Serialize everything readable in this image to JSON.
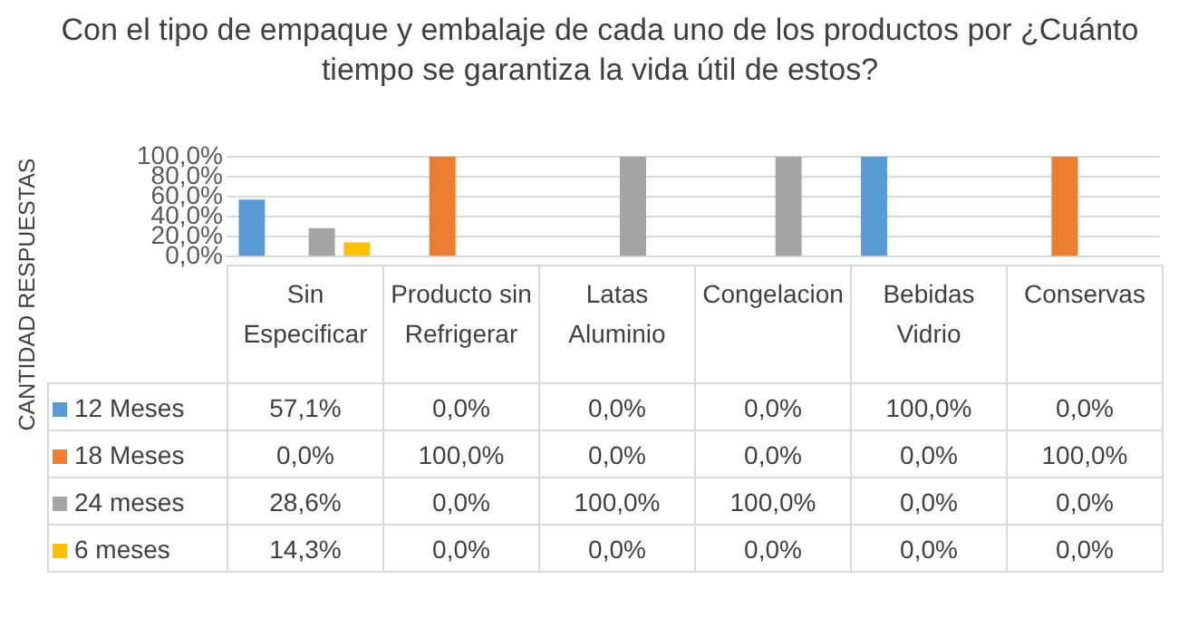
{
  "chart_data": {
    "type": "bar",
    "title": "Con el tipo de empaque y  embalaje de cada uno de los productos por ¿Cuánto tiempo se garantiza la vida útil de estos?",
    "ylabel": "CANTIDAD RESPUESTAS",
    "categories": [
      "Sin Especificar",
      "Producto sin Refrigerar",
      "Latas Aluminio",
      "Congelacion",
      "Bebidas Vidrio",
      "Conservas"
    ],
    "series": [
      {
        "name": "12 Meses",
        "color": "#5b9bd5",
        "values": [
          57.1,
          0,
          0,
          0,
          100,
          0
        ],
        "value_labels": [
          "57,1%",
          "0,0%",
          "0,0%",
          "0,0%",
          "100,0%",
          "0,0%"
        ]
      },
      {
        "name": "18 Meses",
        "color": "#ed7d31",
        "values": [
          0,
          100,
          0,
          0,
          0,
          100
        ],
        "value_labels": [
          "0,0%",
          "100,0%",
          "0,0%",
          "0,0%",
          "0,0%",
          "100,0%"
        ]
      },
      {
        "name": "24 meses",
        "color": "#a5a5a5",
        "values": [
          28.6,
          0,
          100,
          100,
          0,
          0
        ],
        "value_labels": [
          "28,6%",
          "0,0%",
          "100,0%",
          "100,0%",
          "0,0%",
          "0,0%"
        ]
      },
      {
        "name": "6 meses",
        "color": "#ffc000",
        "values": [
          14.3,
          0,
          0,
          0,
          0,
          0
        ],
        "value_labels": [
          "14,3%",
          "0,0%",
          "0,0%",
          "0,0%",
          "0,0%",
          "0,0%"
        ]
      }
    ],
    "ylim": [
      0,
      100
    ],
    "yticks": [
      {
        "value": 0,
        "label": "0,0%"
      },
      {
        "value": 20,
        "label": "20,0%"
      },
      {
        "value": 40,
        "label": "40,0%"
      },
      {
        "value": 60,
        "label": "60,0%"
      },
      {
        "value": 80,
        "label": "80,0%"
      },
      {
        "value": 100,
        "label": "100,0%"
      }
    ],
    "grid": "y",
    "legend": "bottom left"
  }
}
